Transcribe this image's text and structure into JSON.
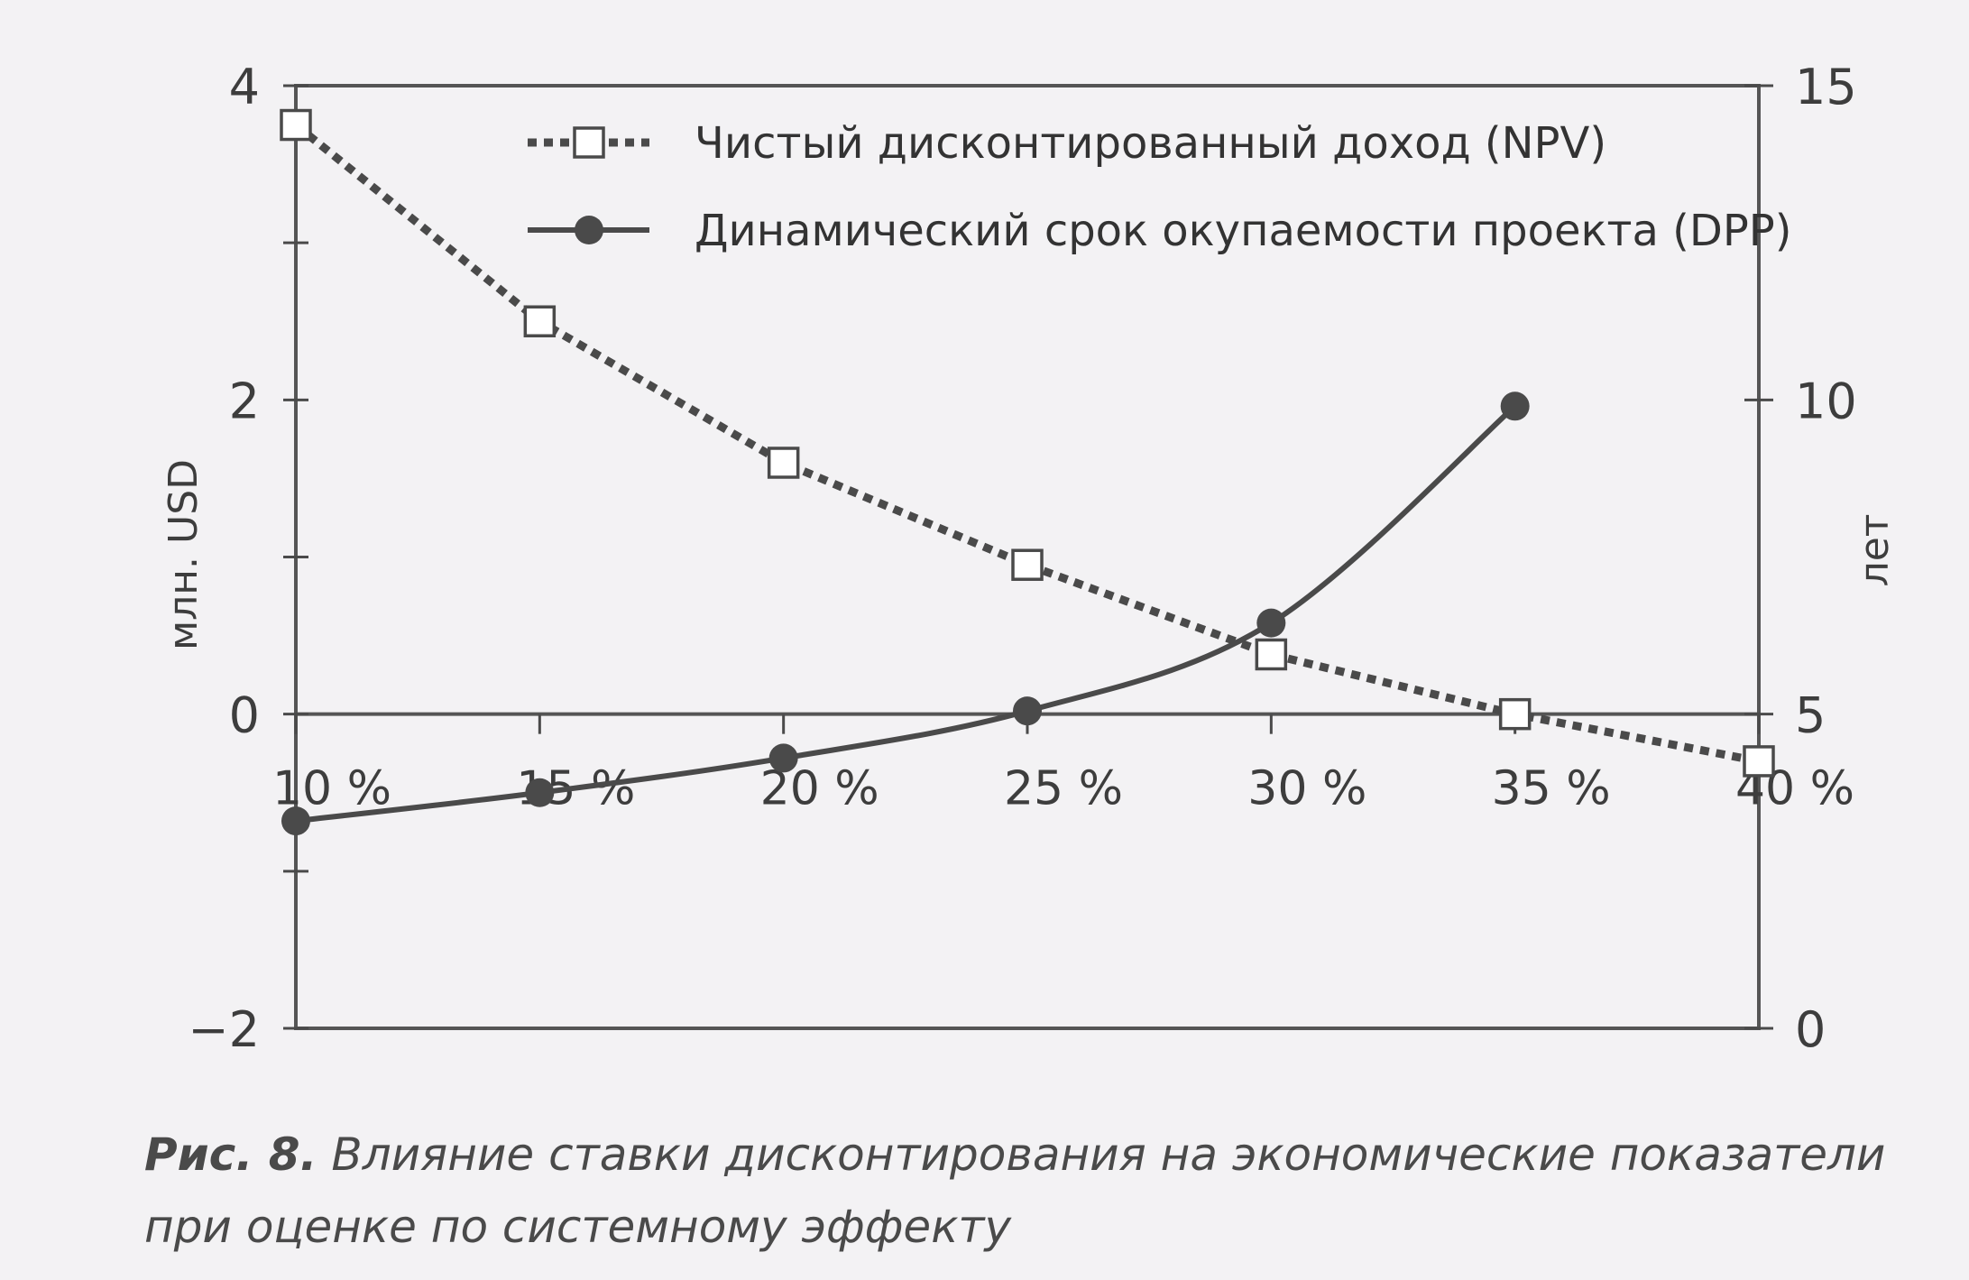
{
  "chart_data": {
    "type": "line",
    "x_tick_labels": [
      "10 %",
      "15 %",
      "20 %",
      "25 %",
      "30 %",
      "35 %",
      "40 %"
    ],
    "x": [
      10,
      15,
      20,
      25,
      30,
      35,
      40
    ],
    "y_left": {
      "label": "млн. USD",
      "range": [
        -2,
        4
      ],
      "ticks": [
        -2,
        0,
        2,
        4
      ],
      "tick_labels": [
        "−2",
        "0",
        "2",
        "4"
      ]
    },
    "y_right": {
      "label": "лет",
      "range": [
        0,
        15
      ],
      "ticks": [
        0,
        5,
        10,
        15
      ],
      "tick_labels": [
        "0",
        "5",
        "10",
        "15"
      ]
    },
    "series": [
      {
        "name": "Чистый дисконтированный доход (NPV)",
        "axis": "left",
        "style": "dashed",
        "marker": "open-square",
        "x": [
          10,
          15,
          20,
          25,
          30,
          35,
          40
        ],
        "values": [
          3.75,
          2.5,
          1.6,
          0.95,
          0.38,
          0.0,
          -0.3
        ]
      },
      {
        "name": "Динамический срок окупаемости проекта (DPP)",
        "axis": "right",
        "style": "solid",
        "marker": "filled-circle",
        "x": [
          10,
          15,
          20,
          25,
          30,
          35
        ],
        "values": [
          3.3,
          3.75,
          4.3,
          5.05,
          6.45,
          9.9
        ]
      }
    ],
    "grid": false,
    "legend_position": "top-center",
    "colors": {
      "line": "#4a4a4a",
      "marker_fill": "#ffffff"
    }
  },
  "caption": {
    "label": "Рис. 8.",
    "text": " Влияние ставки дисконтирования на экономические показатели при оценке по системному эффекту"
  }
}
